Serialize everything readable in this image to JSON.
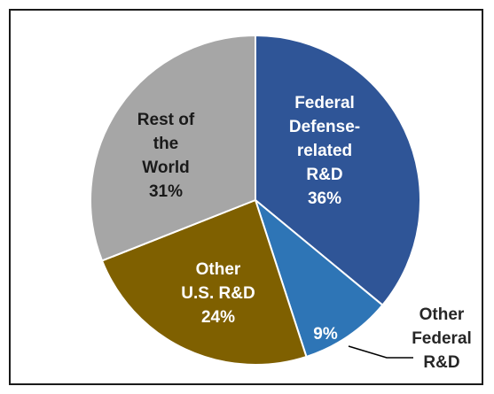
{
  "chart_data": {
    "type": "pie",
    "title": "",
    "slices": [
      {
        "label_lines": [
          "Federal",
          "Defense-",
          "related",
          "R&D"
        ],
        "percent_label": "36%",
        "value": 36,
        "color": "#2f5597",
        "text_color": "#ffffff"
      },
      {
        "label_lines": [
          "Other",
          "Federal",
          "R&D"
        ],
        "percent_label": "9%",
        "value": 9,
        "color": "#2e75b6",
        "text_color": "#ffffff",
        "label_outside": true
      },
      {
        "label_lines": [
          "Other",
          "U.S. R&D"
        ],
        "percent_label": "24%",
        "value": 24,
        "color": "#7f6000",
        "text_color": "#ffffff"
      },
      {
        "label_lines": [
          "Rest of",
          "the",
          "World"
        ],
        "percent_label": "31%",
        "value": 31,
        "color": "#a6a6a6",
        "text_color": "#1a1a1a"
      }
    ],
    "start_angle_deg": 0,
    "direction": "clockwise",
    "slice_border_color": "#ffffff",
    "outside_label_color": "#262626"
  }
}
